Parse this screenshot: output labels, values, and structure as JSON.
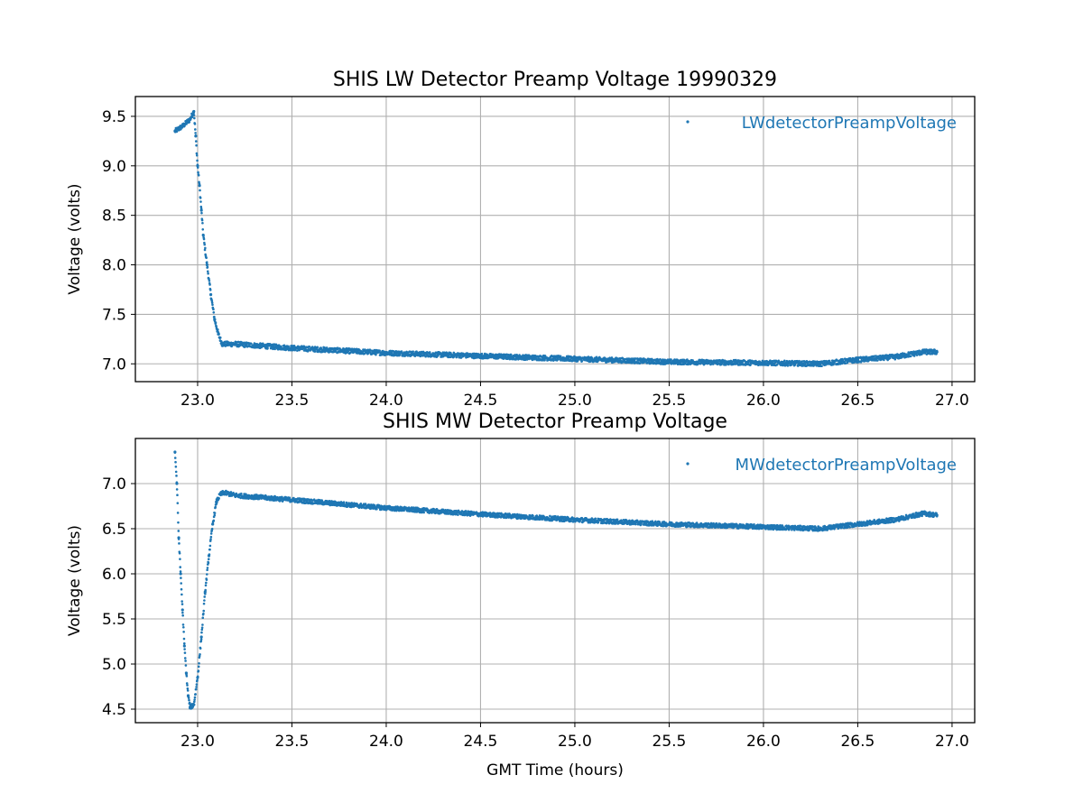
{
  "chart_data": [
    {
      "type": "scatter",
      "title": "SHIS LW Detector Preamp Voltage 19990329",
      "xlabel": "",
      "ylabel": "Voltage (volts)",
      "xlim": [
        22.67,
        27.12
      ],
      "ylim": [
        6.82,
        9.7
      ],
      "xticks": [
        "23.0",
        "23.5",
        "24.0",
        "24.5",
        "25.0",
        "25.5",
        "26.0",
        "26.5",
        "27.0"
      ],
      "yticks": [
        "7.0",
        "7.5",
        "8.0",
        "8.5",
        "9.0",
        "9.5"
      ],
      "grid": true,
      "legend_position": "upper-right",
      "color": "#1f77b4",
      "series": [
        {
          "name": "LWdetectorPreampVoltage",
          "x": [
            22.88,
            22.92,
            22.96,
            22.98,
            22.99,
            23.0,
            23.01,
            23.02,
            23.03,
            23.05,
            23.07,
            23.09,
            23.11,
            23.13,
            23.2,
            23.5,
            24.0,
            24.5,
            25.0,
            25.5,
            26.0,
            26.3,
            26.5,
            26.7,
            26.85,
            26.92
          ],
          "y": [
            9.35,
            9.4,
            9.47,
            9.55,
            9.3,
            9.0,
            8.8,
            8.55,
            8.3,
            8.0,
            7.7,
            7.45,
            7.3,
            7.2,
            7.2,
            7.16,
            7.11,
            7.08,
            7.05,
            7.02,
            7.01,
            7.0,
            7.04,
            7.07,
            7.12,
            7.12
          ]
        }
      ]
    },
    {
      "type": "scatter",
      "title": "SHIS MW Detector Preamp Voltage",
      "xlabel": "GMT Time (hours)",
      "ylabel": "Voltage (volts)",
      "xlim": [
        22.67,
        27.12
      ],
      "ylim": [
        4.35,
        7.5
      ],
      "xticks": [
        "23.0",
        "23.5",
        "24.0",
        "24.5",
        "25.0",
        "25.5",
        "26.0",
        "26.5",
        "27.0"
      ],
      "yticks": [
        "4.5",
        "5.0",
        "5.5",
        "6.0",
        "6.5",
        "7.0"
      ],
      "grid": true,
      "legend_position": "upper-right",
      "color": "#1f77b4",
      "series": [
        {
          "name": "MWdetectorPreampVoltage",
          "x": [
            22.88,
            22.89,
            22.9,
            22.91,
            22.92,
            22.93,
            22.94,
            22.95,
            22.96,
            22.98,
            23.0,
            23.02,
            23.04,
            23.06,
            23.08,
            23.1,
            23.12,
            23.14,
            23.2,
            23.5,
            24.0,
            24.5,
            25.0,
            25.5,
            26.0,
            26.3,
            26.5,
            26.7,
            26.85,
            26.92
          ],
          "y": [
            7.35,
            7.0,
            6.4,
            6.0,
            5.6,
            5.2,
            4.9,
            4.65,
            4.52,
            4.55,
            4.85,
            5.3,
            5.8,
            6.2,
            6.55,
            6.8,
            6.88,
            6.9,
            6.87,
            6.82,
            6.73,
            6.66,
            6.6,
            6.55,
            6.52,
            6.5,
            6.55,
            6.6,
            6.67,
            6.65
          ]
        }
      ]
    }
  ]
}
